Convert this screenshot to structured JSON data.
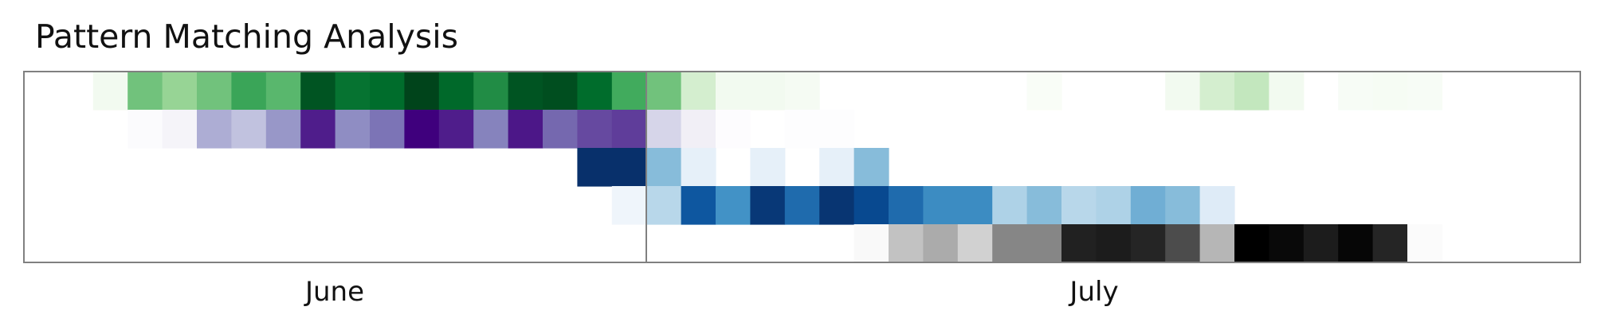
{
  "chart_data": {
    "type": "heatmap",
    "title": "Pattern Matching Analysis",
    "x_axis_labels": [
      "June",
      "July"
    ],
    "row_colormaps": [
      "Greens",
      "Purples",
      "Blues",
      "Blues",
      "Greys"
    ],
    "colormaps": {
      "Greens": [
        "#ffffff",
        "#e5f5e0",
        "#a1d99b",
        "#41ab5d",
        "#006d2c",
        "#00441b"
      ],
      "Purples": [
        "#ffffff",
        "#efedf5",
        "#bcbddc",
        "#807dba",
        "#54278f",
        "#3f007d"
      ],
      "Blues": [
        "#ffffff",
        "#deebf7",
        "#9ecae1",
        "#4292c6",
        "#08519c",
        "#08306b"
      ],
      "Greys": [
        "#ffffff",
        "#f0f0f0",
        "#bdbdbd",
        "#737373",
        "#252525",
        "#000000"
      ]
    },
    "values": [
      [
        0,
        0,
        0.1,
        0.5,
        0.42,
        0.5,
        0.62,
        0.55,
        0.92,
        0.78,
        0.8,
        1.0,
        0.82,
        0.7,
        0.92,
        0.95,
        0.8,
        0.6,
        0.5,
        0.25,
        0.1,
        0.1,
        0.08,
        0,
        0,
        0,
        0,
        0,
        0,
        0.05,
        0,
        0,
        0,
        0.1,
        0.25,
        0.3,
        0.1,
        0,
        0.06,
        0.07,
        0.06,
        0,
        0,
        0,
        0,
        0
      ],
      [
        0,
        0,
        0,
        0.05,
        0.12,
        0.45,
        0.38,
        0.52,
        0.85,
        0.55,
        0.62,
        1.0,
        0.85,
        0.58,
        0.88,
        0.65,
        0.72,
        0.75,
        0.3,
        0.18,
        0.03,
        0,
        0.02,
        0.02,
        0,
        0,
        0,
        0,
        0,
        0,
        0,
        0,
        0,
        0,
        0,
        0,
        0,
        0,
        0,
        0,
        0,
        0,
        0,
        0,
        0,
        0
      ],
      [
        0,
        0,
        0,
        0,
        0,
        0,
        0,
        0,
        0,
        0,
        0,
        0,
        0,
        0,
        0,
        0,
        1.0,
        1.0,
        0.45,
        0.15,
        0,
        0.15,
        0,
        0.15,
        0.45,
        0,
        0,
        0,
        0,
        0,
        0,
        0,
        0,
        0,
        0,
        0,
        0,
        0,
        0,
        0,
        0,
        0,
        0,
        0,
        0,
        0
      ],
      [
        0,
        0,
        0,
        0,
        0,
        0,
        0,
        0,
        0,
        0,
        0,
        0,
        0,
        0,
        0,
        0,
        0,
        0.1,
        0.32,
        0.78,
        0.6,
        0.95,
        0.72,
        0.97,
        0.85,
        0.72,
        0.62,
        0.62,
        0.35,
        0.45,
        0.32,
        0.35,
        0.5,
        0.45,
        0.2,
        0,
        0,
        0,
        0,
        0,
        0,
        0,
        0,
        0,
        0,
        0
      ],
      [
        0,
        0,
        0,
        0,
        0,
        0,
        0,
        0,
        0,
        0,
        0,
        0,
        0,
        0,
        0,
        0,
        0,
        0,
        0,
        0,
        0,
        0,
        0,
        0,
        0.08,
        0.38,
        0.45,
        0.32,
        0.55,
        0.55,
        0.82,
        0.85,
        0.8,
        0.7,
        0.42,
        1.0,
        0.95,
        0.85,
        0.97,
        0.8,
        0.05,
        0,
        0,
        0,
        0,
        0
      ]
    ]
  }
}
